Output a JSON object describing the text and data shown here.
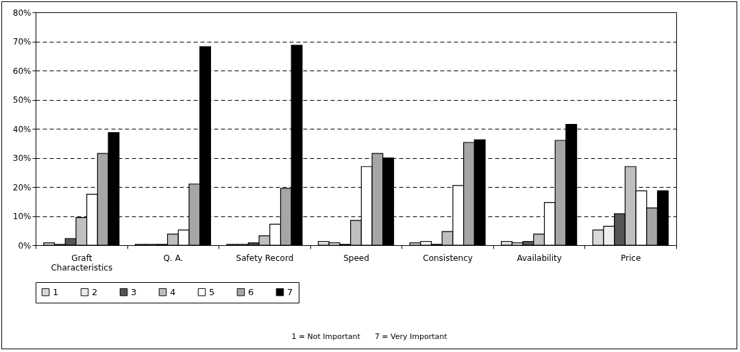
{
  "chart_data": {
    "type": "bar",
    "categories": [
      "Graft Characteristics",
      "Q. A.",
      "Safety Record",
      "Speed",
      "Consistency",
      "Availability",
      "Price"
    ],
    "series": [
      {
        "name": "1",
        "color": "#d9d9d9",
        "values": [
          0.8,
          0.3,
          0.3,
          1.3,
          0.8,
          1.3,
          5.2
        ]
      },
      {
        "name": "2",
        "color": "#eeeeee",
        "values": [
          0.3,
          0.3,
          0.3,
          0.8,
          1.3,
          0.8,
          6.5
        ]
      },
      {
        "name": "3",
        "color": "#555555",
        "values": [
          2.3,
          0.3,
          0.8,
          0.3,
          0.3,
          1.3,
          10.8
        ]
      },
      {
        "name": "4",
        "color": "#bfbfbf",
        "values": [
          9.5,
          3.8,
          3.2,
          8.5,
          4.7,
          3.8,
          27
        ]
      },
      {
        "name": "5",
        "color": "#ffffff",
        "values": [
          17.5,
          5.2,
          7.2,
          27,
          20.5,
          14.7,
          18.7
        ]
      },
      {
        "name": "6",
        "color": "#a6a6a6",
        "values": [
          31.5,
          21,
          19.5,
          31.5,
          35.3,
          36,
          12.8
        ]
      },
      {
        "name": "7",
        "color": "#000000",
        "values": [
          38.7,
          68.2,
          68.7,
          30,
          36.2,
          41.5,
          18.7
        ]
      }
    ],
    "ylim": [
      0,
      80
    ],
    "yticks": [
      {
        "value": 0,
        "label": "0%"
      },
      {
        "value": 10,
        "label": "10%"
      },
      {
        "value": 20,
        "label": "20%"
      },
      {
        "value": 30,
        "label": "30%"
      },
      {
        "value": 40,
        "label": "40%"
      },
      {
        "value": 50,
        "label": "50%"
      },
      {
        "value": 60,
        "label": "60%"
      },
      {
        "value": 70,
        "label": "70%"
      },
      {
        "value": 80,
        "label": "80%"
      }
    ],
    "grid": "y",
    "legend": "bottom",
    "annotations": [
      "1 = Not Important      7 = Very Important"
    ]
  }
}
